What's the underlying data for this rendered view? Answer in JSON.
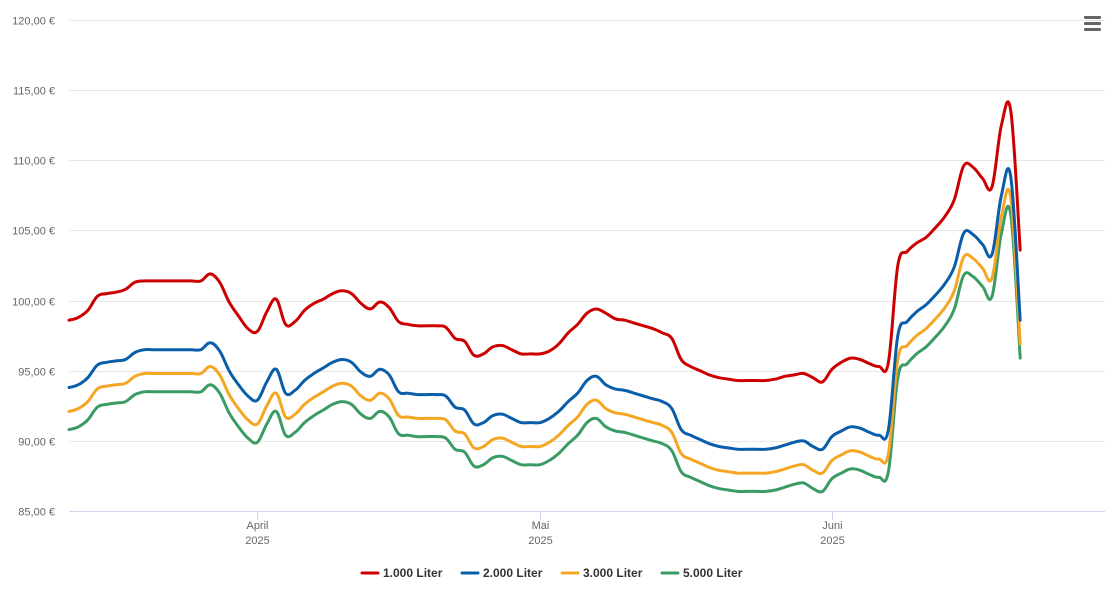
{
  "chart_data": {
    "type": "line",
    "title": "",
    "xlabel": "",
    "ylabel": "",
    "ylim": [
      85,
      120
    ],
    "y_ticks": [
      "120,00 €",
      "115,00 €",
      "110,00 €",
      "105,00 €",
      "100,00 €",
      "95,00 €",
      "90,00 €",
      "85,00 €"
    ],
    "x_range": [
      "2025-03-12",
      "2025-06-30"
    ],
    "x_ticks": [
      {
        "date": "2025-04-01",
        "label": "April",
        "year": "2025"
      },
      {
        "date": "2025-05-01",
        "label": "Mai",
        "year": "2025"
      },
      {
        "date": "2025-06-01",
        "label": "Juni",
        "year": "2025"
      }
    ],
    "grid": "horizontal",
    "legend_position": "bottom-center",
    "x": [
      "2025-03-12",
      "2025-03-13",
      "2025-03-14",
      "2025-03-15",
      "2025-03-16",
      "2025-03-17",
      "2025-03-18",
      "2025-03-19",
      "2025-03-20",
      "2025-03-21",
      "2025-03-22",
      "2025-03-23",
      "2025-03-24",
      "2025-03-25",
      "2025-03-26",
      "2025-03-27",
      "2025-03-28",
      "2025-03-29",
      "2025-03-30",
      "2025-03-31",
      "2025-04-01",
      "2025-04-02",
      "2025-04-03",
      "2025-04-04",
      "2025-04-05",
      "2025-04-06",
      "2025-04-07",
      "2025-04-08",
      "2025-04-09",
      "2025-04-10",
      "2025-04-11",
      "2025-04-12",
      "2025-04-13",
      "2025-04-14",
      "2025-04-15",
      "2025-04-16",
      "2025-04-17",
      "2025-04-18",
      "2025-04-19",
      "2025-04-20",
      "2025-04-21",
      "2025-04-22",
      "2025-04-23",
      "2025-04-24",
      "2025-04-25",
      "2025-04-26",
      "2025-04-27",
      "2025-04-28",
      "2025-04-29",
      "2025-04-30",
      "2025-05-01",
      "2025-05-02",
      "2025-05-03",
      "2025-05-04",
      "2025-05-05",
      "2025-05-06",
      "2025-05-07",
      "2025-05-08",
      "2025-05-09",
      "2025-05-10",
      "2025-05-11",
      "2025-05-12",
      "2025-05-13",
      "2025-05-14",
      "2025-05-15",
      "2025-05-16",
      "2025-05-17",
      "2025-05-18",
      "2025-05-19",
      "2025-05-20",
      "2025-05-21",
      "2025-05-22",
      "2025-05-23",
      "2025-05-24",
      "2025-05-25",
      "2025-05-26",
      "2025-05-27",
      "2025-05-28",
      "2025-05-29",
      "2025-05-30",
      "2025-05-31",
      "2025-06-01",
      "2025-06-02",
      "2025-06-03",
      "2025-06-04",
      "2025-06-05",
      "2025-06-06",
      "2025-06-07",
      "2025-06-08",
      "2025-06-09",
      "2025-06-10",
      "2025-06-11",
      "2025-06-12",
      "2025-06-13",
      "2025-06-14",
      "2025-06-15",
      "2025-06-16",
      "2025-06-17",
      "2025-06-18",
      "2025-06-19",
      "2025-06-20",
      "2025-06-21",
      "2025-06-22",
      "2025-06-23",
      "2025-06-24",
      "2025-06-25",
      "2025-06-26",
      "2025-06-27",
      "2025-06-28",
      "2025-06-29",
      "2025-06-30"
    ],
    "series": [
      {
        "name": "1.000 Liter",
        "color": "#cc0000",
        "values": [
          98.6,
          98.8,
          99.3,
          100.3,
          100.5,
          100.6,
          100.8,
          101.3,
          101.4,
          101.4,
          101.4,
          101.4,
          101.4,
          101.4,
          101.4,
          101.9,
          101.3,
          99.9,
          98.9,
          98.0,
          97.8,
          99.2,
          100.1,
          98.3,
          98.5,
          99.3,
          99.8,
          100.1,
          100.5,
          100.7,
          100.5,
          99.8,
          99.4,
          99.9,
          99.5,
          98.5,
          98.3,
          98.2,
          98.2,
          98.2,
          98.1,
          97.3,
          97.1,
          96.1,
          96.2,
          96.7,
          96.8,
          96.5,
          96.2,
          96.2,
          96.2,
          96.4,
          96.9,
          97.7,
          98.3,
          99.1,
          99.4,
          99.1,
          98.7,
          98.6,
          98.4,
          98.2,
          98.0,
          97.7,
          97.3,
          95.8,
          95.3,
          95.0,
          94.7,
          94.5,
          94.4,
          94.3,
          94.3,
          94.3,
          94.3,
          94.4,
          94.6,
          94.7,
          94.8,
          94.5,
          94.2,
          95.1,
          95.6,
          95.9,
          95.8,
          95.5,
          95.3,
          95.6,
          102.5,
          103.5,
          104.1,
          104.5,
          105.2,
          106.0,
          107.2,
          109.6,
          109.5,
          108.7,
          108.1,
          112.5,
          113.5,
          103.6,
          null,
          null,
          null,
          null,
          null,
          null,
          null,
          null,
          null
        ]
      },
      {
        "name": "2.000 Liter",
        "color": "#0a5da8",
        "values": [
          93.8,
          94.0,
          94.5,
          95.4,
          95.6,
          95.7,
          95.8,
          96.3,
          96.5,
          96.5,
          96.5,
          96.5,
          96.5,
          96.5,
          96.5,
          97.0,
          96.4,
          95.0,
          94.0,
          93.2,
          92.9,
          94.2,
          95.1,
          93.4,
          93.6,
          94.3,
          94.8,
          95.2,
          95.6,
          95.8,
          95.6,
          94.9,
          94.6,
          95.1,
          94.7,
          93.5,
          93.4,
          93.3,
          93.3,
          93.3,
          93.2,
          92.4,
          92.2,
          91.2,
          91.3,
          91.8,
          91.9,
          91.6,
          91.3,
          91.3,
          91.3,
          91.6,
          92.1,
          92.8,
          93.4,
          94.3,
          94.6,
          94.0,
          93.7,
          93.6,
          93.4,
          93.2,
          93.0,
          92.8,
          92.3,
          90.8,
          90.4,
          90.1,
          89.8,
          89.6,
          89.5,
          89.4,
          89.4,
          89.4,
          89.4,
          89.5,
          89.7,
          89.9,
          90.0,
          89.6,
          89.4,
          90.3,
          90.7,
          91.0,
          90.9,
          90.6,
          90.4,
          90.8,
          97.5,
          98.5,
          99.2,
          99.7,
          100.4,
          101.2,
          102.4,
          104.8,
          104.7,
          104.0,
          103.3,
          107.5,
          108.8,
          98.6,
          null,
          null,
          null,
          null,
          null,
          null,
          null,
          null,
          null
        ]
      },
      {
        "name": "3.000 Liter",
        "color": "#f5a623",
        "values": [
          92.1,
          92.3,
          92.8,
          93.7,
          93.9,
          94.0,
          94.1,
          94.6,
          94.8,
          94.8,
          94.8,
          94.8,
          94.8,
          94.8,
          94.8,
          95.3,
          94.7,
          93.3,
          92.3,
          91.5,
          91.2,
          92.5,
          93.4,
          91.7,
          91.9,
          92.6,
          93.1,
          93.5,
          93.9,
          94.1,
          93.9,
          93.2,
          92.9,
          93.4,
          93.0,
          91.8,
          91.7,
          91.6,
          91.6,
          91.6,
          91.5,
          90.7,
          90.5,
          89.5,
          89.6,
          90.1,
          90.2,
          89.9,
          89.6,
          89.6,
          89.6,
          89.9,
          90.4,
          91.1,
          91.7,
          92.6,
          92.9,
          92.3,
          92.0,
          91.9,
          91.7,
          91.5,
          91.3,
          91.1,
          90.6,
          89.1,
          88.7,
          88.4,
          88.1,
          87.9,
          87.8,
          87.7,
          87.7,
          87.7,
          87.7,
          87.8,
          88.0,
          88.2,
          88.3,
          87.9,
          87.7,
          88.6,
          89.0,
          89.3,
          89.2,
          88.9,
          88.7,
          89.1,
          95.8,
          96.8,
          97.5,
          98.0,
          98.7,
          99.5,
          100.7,
          103.1,
          103.0,
          102.3,
          101.6,
          106.0,
          107.3,
          96.9,
          null,
          null,
          null,
          null,
          null,
          null,
          null,
          null,
          null
        ]
      },
      {
        "name": "5.000 Liter",
        "color": "#3a9b65",
        "values": [
          90.8,
          91.0,
          91.5,
          92.4,
          92.6,
          92.7,
          92.8,
          93.3,
          93.5,
          93.5,
          93.5,
          93.5,
          93.5,
          93.5,
          93.5,
          94.0,
          93.4,
          92.0,
          91.0,
          90.2,
          89.9,
          91.2,
          92.1,
          90.4,
          90.6,
          91.3,
          91.8,
          92.2,
          92.6,
          92.8,
          92.6,
          91.9,
          91.6,
          92.1,
          91.7,
          90.5,
          90.4,
          90.3,
          90.3,
          90.3,
          90.2,
          89.4,
          89.2,
          88.2,
          88.3,
          88.8,
          88.9,
          88.6,
          88.3,
          88.3,
          88.3,
          88.6,
          89.1,
          89.8,
          90.4,
          91.3,
          91.6,
          91.0,
          90.7,
          90.6,
          90.4,
          90.2,
          90.0,
          89.8,
          89.3,
          87.8,
          87.4,
          87.1,
          86.8,
          86.6,
          86.5,
          86.4,
          86.4,
          86.4,
          86.4,
          86.5,
          86.7,
          86.9,
          87.0,
          86.6,
          86.4,
          87.3,
          87.7,
          88.0,
          87.9,
          87.6,
          87.4,
          87.8,
          94.5,
          95.5,
          96.2,
          96.7,
          97.4,
          98.2,
          99.4,
          101.8,
          101.7,
          101.0,
          100.3,
          104.8,
          106.1,
          95.9,
          null,
          null,
          null,
          null,
          null,
          null,
          null,
          null,
          null
        ]
      }
    ]
  },
  "menu": {
    "icon": "hamburger-icon"
  }
}
